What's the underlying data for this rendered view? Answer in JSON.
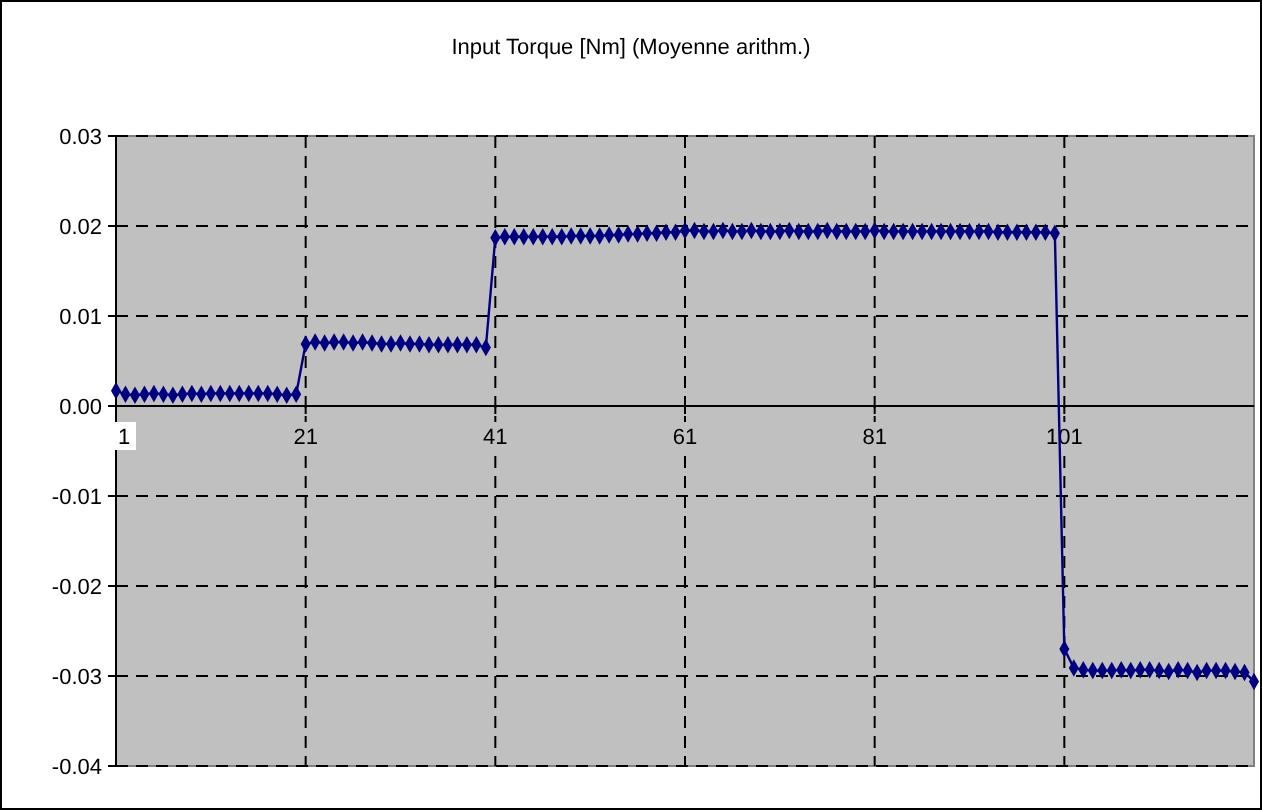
{
  "chart_data": {
    "type": "line",
    "title": "Input Torque [Nm] (Moyenne arithm.)",
    "x": [
      1,
      2,
      3,
      4,
      5,
      6,
      7,
      8,
      9,
      10,
      11,
      12,
      13,
      14,
      15,
      16,
      17,
      18,
      19,
      20,
      21,
      22,
      23,
      24,
      25,
      26,
      27,
      28,
      29,
      30,
      31,
      32,
      33,
      34,
      35,
      36,
      37,
      38,
      39,
      40,
      41,
      42,
      43,
      44,
      45,
      46,
      47,
      48,
      49,
      50,
      51,
      52,
      53,
      54,
      55,
      56,
      57,
      58,
      59,
      60,
      61,
      62,
      63,
      64,
      65,
      66,
      67,
      68,
      69,
      70,
      71,
      72,
      73,
      74,
      75,
      76,
      77,
      78,
      79,
      80,
      81,
      82,
      83,
      84,
      85,
      86,
      87,
      88,
      89,
      90,
      91,
      92,
      93,
      94,
      95,
      96,
      97,
      98,
      99,
      100,
      101,
      102,
      103,
      104,
      105,
      106,
      107,
      108,
      109,
      110,
      111,
      112,
      113,
      114,
      115,
      116,
      117,
      118,
      119,
      120,
      121
    ],
    "series": [
      {
        "color": "#000080",
        "values": [
          0.0017,
          0.0013,
          0.0012,
          0.0013,
          0.0014,
          0.0013,
          0.0012,
          0.0013,
          0.0014,
          0.0013,
          0.0014,
          0.0014,
          0.0014,
          0.0014,
          0.0014,
          0.0014,
          0.0014,
          0.0013,
          0.0012,
          0.0013,
          0.0069,
          0.0071,
          0.007,
          0.0071,
          0.0071,
          0.007,
          0.0071,
          0.007,
          0.0069,
          0.0069,
          0.007,
          0.0069,
          0.0069,
          0.0068,
          0.0068,
          0.0068,
          0.0068,
          0.0068,
          0.0068,
          0.0065,
          0.0187,
          0.0188,
          0.0188,
          0.0188,
          0.0188,
          0.0188,
          0.0188,
          0.0188,
          0.0189,
          0.0189,
          0.0189,
          0.0189,
          0.019,
          0.019,
          0.0191,
          0.0191,
          0.0192,
          0.0192,
          0.0193,
          0.0193,
          0.0195,
          0.0195,
          0.0194,
          0.0194,
          0.0195,
          0.0194,
          0.0194,
          0.0195,
          0.0194,
          0.0194,
          0.0194,
          0.0195,
          0.0194,
          0.0194,
          0.0194,
          0.0195,
          0.0194,
          0.0194,
          0.0194,
          0.0194,
          0.0195,
          0.0194,
          0.0194,
          0.0194,
          0.0194,
          0.0194,
          0.0194,
          0.0194,
          0.0194,
          0.0194,
          0.0194,
          0.0194,
          0.0194,
          0.0193,
          0.0193,
          0.0193,
          0.0193,
          0.0193,
          0.0193,
          0.0192,
          -0.027,
          -0.0291,
          -0.0293,
          -0.0294,
          -0.0294,
          -0.0294,
          -0.0293,
          -0.0294,
          -0.0293,
          -0.0293,
          -0.0294,
          -0.0295,
          -0.0293,
          -0.0294,
          -0.0296,
          -0.0294,
          -0.0294,
          -0.0294,
          -0.0295,
          -0.0296,
          -0.0306
        ]
      }
    ],
    "xlim": [
      1,
      121
    ],
    "xticks": [
      1,
      21,
      41,
      61,
      81,
      101
    ],
    "ylim": [
      -0.04,
      0.03
    ],
    "yticks": [
      {
        "value": -0.04,
        "label": "-0.04"
      },
      {
        "value": -0.03,
        "label": "-0.03"
      },
      {
        "value": -0.02,
        "label": "-0.02"
      },
      {
        "value": -0.01,
        "label": "-0.01"
      },
      {
        "value": 0,
        "label": "0.00"
      },
      {
        "value": 0.01,
        "label": "0.01"
      },
      {
        "value": 0.02,
        "label": "0.02"
      },
      {
        "value": 0.03,
        "label": "0.03"
      }
    ],
    "grid": true,
    "marker": "diamond",
    "line_style": "solid"
  }
}
